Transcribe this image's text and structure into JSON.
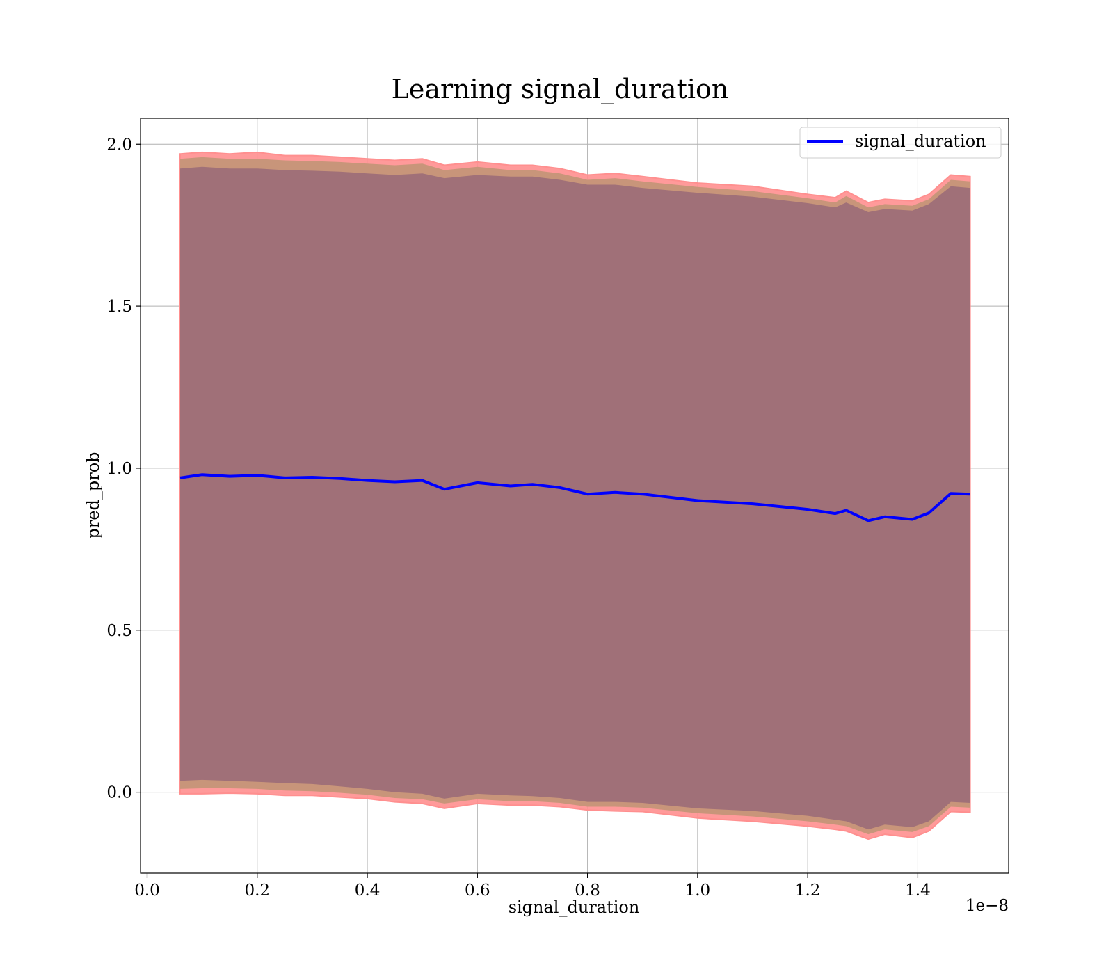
{
  "chart_data": {
    "type": "area",
    "title": "Learning signal_duration",
    "xlabel": "signal_duration",
    "ylabel": "pred_prob",
    "x_offset_label": "1e−8",
    "xlim": [
      -0.012,
      1.565
    ],
    "ylim": [
      -0.25,
      2.08
    ],
    "xticks": [
      0.0,
      0.2,
      0.4,
      0.6,
      0.8,
      1.0,
      1.2,
      1.4
    ],
    "xtick_labels": [
      "0.0",
      "0.2",
      "0.4",
      "0.6",
      "0.8",
      "1.0",
      "1.2",
      "1.4"
    ],
    "yticks": [
      0.0,
      0.5,
      1.0,
      1.5,
      2.0
    ],
    "ytick_labels": [
      "0.0",
      "0.5",
      "1.0",
      "1.5",
      "2.0"
    ],
    "grid": true,
    "legend": {
      "placement": "top-right",
      "entries": [
        "signal_duration"
      ]
    },
    "colors": {
      "line": "#0000ff",
      "band_outer": "#ff8f8f",
      "band_mid": "#c8957a",
      "band_inner": "#a07078",
      "grid": "#b0b0b0"
    },
    "x": [
      0.06,
      0.1,
      0.15,
      0.2,
      0.25,
      0.3,
      0.35,
      0.4,
      0.45,
      0.5,
      0.54,
      0.6,
      0.66,
      0.7,
      0.75,
      0.8,
      0.85,
      0.9,
      1.0,
      1.1,
      1.2,
      1.25,
      1.27,
      1.31,
      1.34,
      1.39,
      1.42,
      1.46,
      1.495
    ],
    "series": [
      {
        "name": "signal_duration",
        "values": [
          0.97,
          0.98,
          0.975,
          0.978,
          0.97,
          0.972,
          0.968,
          0.962,
          0.958,
          0.962,
          0.935,
          0.955,
          0.945,
          0.95,
          0.94,
          0.92,
          0.925,
          0.92,
          0.9,
          0.89,
          0.873,
          0.86,
          0.87,
          0.838,
          0.85,
          0.842,
          0.862,
          0.922,
          0.92
        ]
      }
    ],
    "bands": [
      {
        "lower": [
          -0.005,
          -0.005,
          -0.003,
          -0.005,
          -0.01,
          -0.01,
          -0.015,
          -0.02,
          -0.03,
          -0.035,
          -0.05,
          -0.035,
          -0.04,
          -0.04,
          -0.045,
          -0.055,
          -0.058,
          -0.06,
          -0.08,
          -0.09,
          -0.105,
          -0.115,
          -0.12,
          -0.145,
          -0.13,
          -0.14,
          -0.12,
          -0.06,
          -0.062
        ],
        "upper": [
          1.97,
          1.975,
          1.97,
          1.975,
          1.965,
          1.965,
          1.96,
          1.955,
          1.95,
          1.955,
          1.935,
          1.945,
          1.935,
          1.935,
          1.925,
          1.905,
          1.91,
          1.9,
          1.88,
          1.87,
          1.845,
          1.835,
          1.855,
          1.82,
          1.83,
          1.825,
          1.845,
          1.905,
          1.9
        ]
      },
      {
        "lower": [
          0.01,
          0.012,
          0.012,
          0.01,
          0.005,
          0.003,
          -0.002,
          -0.008,
          -0.018,
          -0.022,
          -0.035,
          -0.022,
          -0.028,
          -0.028,
          -0.033,
          -0.045,
          -0.045,
          -0.048,
          -0.065,
          -0.075,
          -0.09,
          -0.1,
          -0.105,
          -0.13,
          -0.115,
          -0.123,
          -0.105,
          -0.045,
          -0.048
        ],
        "upper": [
          1.955,
          1.96,
          1.955,
          1.955,
          1.95,
          1.948,
          1.945,
          1.94,
          1.935,
          1.94,
          1.92,
          1.93,
          1.92,
          1.92,
          1.91,
          1.89,
          1.895,
          1.885,
          1.868,
          1.855,
          1.833,
          1.82,
          1.84,
          1.805,
          1.815,
          1.81,
          1.83,
          1.89,
          1.885
        ]
      },
      {
        "lower": [
          0.035,
          0.038,
          0.035,
          0.032,
          0.028,
          0.025,
          0.018,
          0.01,
          0.0,
          -0.005,
          -0.02,
          -0.005,
          -0.01,
          -0.012,
          -0.018,
          -0.03,
          -0.03,
          -0.033,
          -0.05,
          -0.058,
          -0.073,
          -0.085,
          -0.09,
          -0.115,
          -0.1,
          -0.108,
          -0.09,
          -0.03,
          -0.033
        ],
        "upper": [
          1.925,
          1.93,
          1.925,
          1.925,
          1.92,
          1.918,
          1.915,
          1.91,
          1.905,
          1.91,
          1.895,
          1.905,
          1.9,
          1.9,
          1.89,
          1.875,
          1.875,
          1.865,
          1.85,
          1.838,
          1.818,
          1.805,
          1.82,
          1.79,
          1.8,
          1.795,
          1.815,
          1.87,
          1.865
        ]
      }
    ]
  }
}
